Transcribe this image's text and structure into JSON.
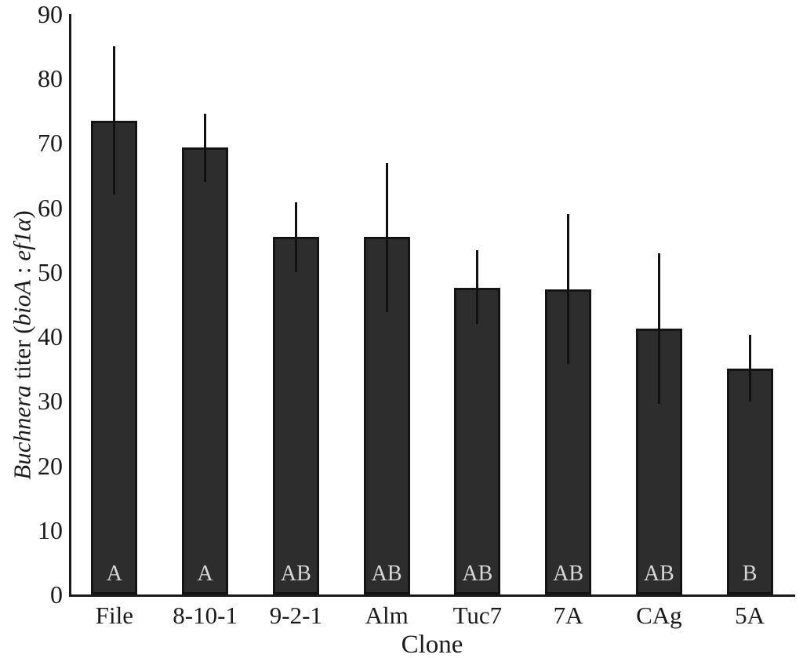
{
  "chart_data": {
    "type": "bar",
    "title": "",
    "xlabel": "Clone",
    "ylabel_plain": "Buchnera titer (bioA : ef1α)",
    "ylabel_parts": [
      {
        "text": "Buchnera",
        "italic": true
      },
      {
        "text": " titer (",
        "italic": false
      },
      {
        "text": "bioA",
        "italic": true
      },
      {
        "text": " : ",
        "italic": false
      },
      {
        "text": "ef1α",
        "italic": true
      },
      {
        "text": ")",
        "italic": false
      }
    ],
    "categories": [
      "File",
      "8-10-1",
      "9-2-1",
      "Alm",
      "Tuc7",
      "7A",
      "CAg",
      "5A"
    ],
    "values": [
      73.5,
      69.3,
      55.5,
      55.4,
      47.6,
      47.3,
      41.2,
      35.0
    ],
    "error_upper": [
      85.0,
      74.6,
      60.8,
      66.9,
      53.4,
      59.0,
      52.9,
      40.3
    ],
    "error_lower": [
      62.0,
      64.0,
      50.0,
      43.8,
      42.0,
      35.8,
      29.6,
      29.9
    ],
    "significance_letters": [
      "A",
      "A",
      "AB",
      "AB",
      "AB",
      "AB",
      "AB",
      "B"
    ],
    "ylim": [
      0,
      90
    ],
    "ytick_interval": 10,
    "yticks": [
      0,
      10,
      20,
      30,
      40,
      50,
      60,
      70,
      80,
      90
    ],
    "grid": "off",
    "legend": "none",
    "bar_color": "#2d2d2d",
    "bar_border_color": "#141414",
    "error_color": "#111111",
    "letter_color": "#d8d8d8",
    "axis_color": "#1a1a1a",
    "background_color": "#ffffff"
  }
}
